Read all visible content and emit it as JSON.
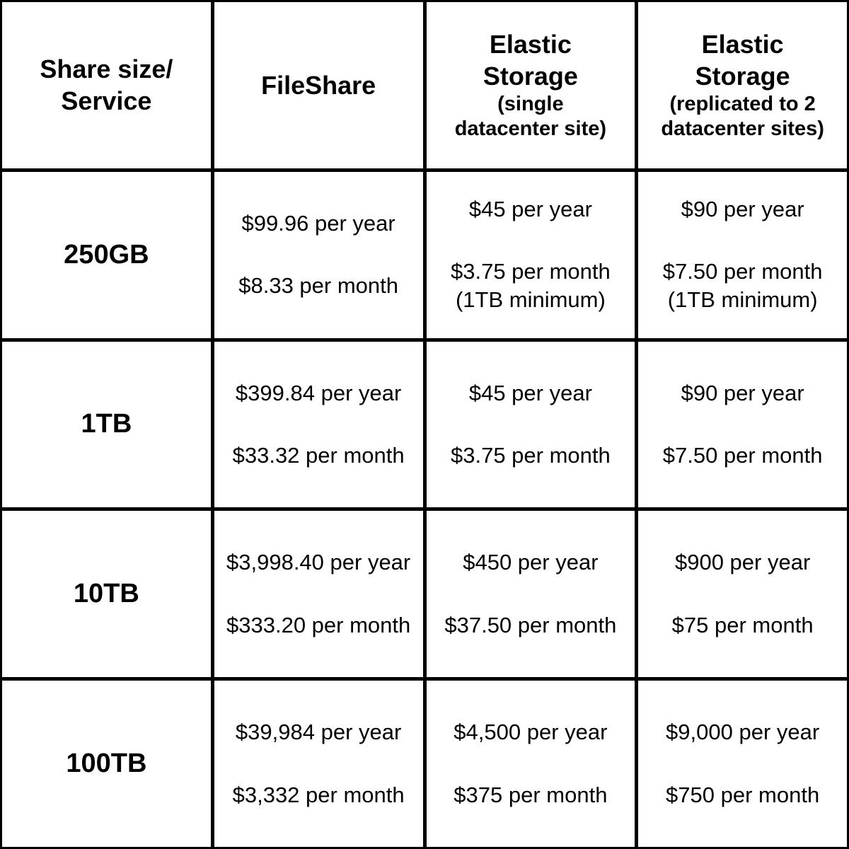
{
  "table": {
    "header": {
      "col0": {
        "title": "Share size/\nService"
      },
      "col1": {
        "title": "FileShare"
      },
      "col2": {
        "title": "Elastic\nStorage",
        "subtitle": "(single\ndatacenter site)"
      },
      "col3": {
        "title": "Elastic\nStorage",
        "subtitle": "(replicated to 2\ndatacenter sites)"
      }
    },
    "rows": [
      {
        "label": "250GB",
        "cells": [
          {
            "year": "$99.96 per year",
            "month": "$8.33 per month",
            "note": ""
          },
          {
            "year": "$45 per year",
            "month": "$3.75 per month",
            "note": "(1TB minimum)"
          },
          {
            "year": "$90 per year",
            "month": "$7.50 per month",
            "note": "(1TB minimum)"
          }
        ]
      },
      {
        "label": "1TB",
        "cells": [
          {
            "year": "$399.84 per year",
            "month": "$33.32 per month",
            "note": ""
          },
          {
            "year": "$45 per year",
            "month": "$3.75 per month",
            "note": ""
          },
          {
            "year": "$90 per year",
            "month": "$7.50 per month",
            "note": ""
          }
        ]
      },
      {
        "label": "10TB",
        "cells": [
          {
            "year": "$3,998.40 per year",
            "month": "$333.20 per month",
            "note": ""
          },
          {
            "year": "$450 per year",
            "month": "$37.50 per month",
            "note": ""
          },
          {
            "year": "$900 per year",
            "month": "$75 per month",
            "note": ""
          }
        ]
      },
      {
        "label": "100TB",
        "cells": [
          {
            "year": "$39,984 per year",
            "month": "$3,332 per month",
            "note": ""
          },
          {
            "year": "$4,500 per year",
            "month": "$375 per month",
            "note": ""
          },
          {
            "year": "$9,000 per year",
            "month": "$750 per month",
            "note": ""
          }
        ]
      }
    ]
  },
  "chart_data": {
    "type": "table",
    "columns": [
      "Share size/Service",
      "FileShare",
      "Elastic Storage (single datacenter site)",
      "Elastic Storage (replicated to 2 datacenter sites)"
    ],
    "rows": [
      [
        "250GB",
        "$99.96 per year / $8.33 per month",
        "$45 per year / $3.75 per month (1TB minimum)",
        "$90 per year / $7.50 per month (1TB minimum)"
      ],
      [
        "1TB",
        "$399.84 per year / $33.32 per month",
        "$45 per year / $3.75 per month",
        "$90 per year / $7.50 per month"
      ],
      [
        "10TB",
        "$3,998.40 per year / $333.20 per month",
        "$450 per year / $37.50 per month",
        "$900 per year / $75 per month"
      ],
      [
        "100TB",
        "$39,984 per year / $3,332 per month",
        "$4,500 per year / $375 per month",
        "$9,000 per year / $750 per month"
      ]
    ],
    "colors": {
      "text": "#000000",
      "border": "#000000",
      "background": "#ffffff"
    }
  }
}
